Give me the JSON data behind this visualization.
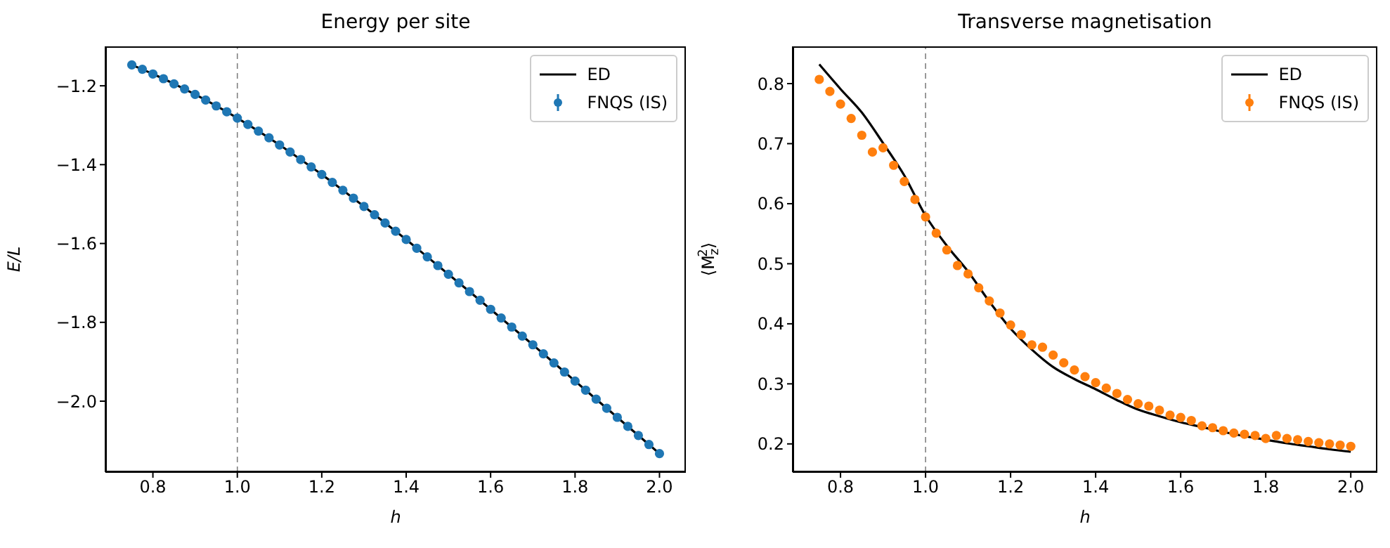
{
  "chart_data": [
    {
      "type": "line",
      "title": "Energy per site",
      "xlabel": "h",
      "ylabel": "E/L",
      "legend": "top right",
      "xlim": [
        0.6875,
        2.0625
      ],
      "xticks": [
        {
          "value": 0.8,
          "label": "0.8"
        },
        {
          "value": 1.0,
          "label": "1.0"
        },
        {
          "value": 1.2,
          "label": "1.2"
        },
        {
          "value": 1.4,
          "label": "1.4"
        },
        {
          "value": 1.6,
          "label": "1.6"
        },
        {
          "value": 1.8,
          "label": "1.8"
        },
        {
          "value": 2.0,
          "label": "2.0"
        }
      ],
      "ylim": [
        -2.18,
        -1.1
      ],
      "yticks": [
        {
          "value": -2.0,
          "label": "−2.0"
        },
        {
          "value": -1.8,
          "label": "−1.8"
        },
        {
          "value": -1.6,
          "label": "−1.6"
        },
        {
          "value": -1.4,
          "label": "−1.4"
        },
        {
          "value": -1.2,
          "label": "−1.2"
        }
      ],
      "ref_lines": [
        {
          "axis": "x",
          "value": 1.0,
          "color": "#808080",
          "line_style": "dashed"
        }
      ],
      "series": [
        {
          "name": "ED",
          "color": "#000000",
          "marker": "none",
          "line_style": "solid",
          "x": [
            0.75,
            0.8,
            0.85,
            0.9,
            0.95,
            1.0,
            1.05,
            1.1,
            1.15,
            1.2,
            1.25,
            1.3,
            1.35,
            1.4,
            1.45,
            1.5,
            1.55,
            1.6,
            1.65,
            1.7,
            1.75,
            1.8,
            1.85,
            1.9,
            1.95,
            2.0
          ],
          "values": [
            -1.147,
            -1.17,
            -1.195,
            -1.222,
            -1.251,
            -1.282,
            -1.315,
            -1.35,
            -1.387,
            -1.425,
            -1.465,
            -1.506,
            -1.548,
            -1.59,
            -1.634,
            -1.678,
            -1.722,
            -1.767,
            -1.812,
            -1.857,
            -1.903,
            -1.949,
            -1.995,
            -2.041,
            -2.087,
            -2.133
          ]
        },
        {
          "name": "FNQS (IS)",
          "type": "scatter",
          "color": "#1f77b4",
          "marker": "circle",
          "x": [
            0.75,
            0.775,
            0.8,
            0.825,
            0.85,
            0.875,
            0.9,
            0.925,
            0.95,
            0.975,
            1.0,
            1.025,
            1.05,
            1.075,
            1.1,
            1.125,
            1.15,
            1.175,
            1.2,
            1.225,
            1.25,
            1.275,
            1.3,
            1.325,
            1.35,
            1.375,
            1.4,
            1.425,
            1.45,
            1.475,
            1.5,
            1.525,
            1.55,
            1.575,
            1.6,
            1.625,
            1.65,
            1.675,
            1.7,
            1.725,
            1.75,
            1.775,
            1.8,
            1.825,
            1.85,
            1.875,
            1.9,
            1.925,
            1.95,
            1.975,
            2.0
          ],
          "values": [
            -1.147,
            -1.158,
            -1.17,
            -1.182,
            -1.195,
            -1.208,
            -1.222,
            -1.236,
            -1.251,
            -1.266,
            -1.282,
            -1.298,
            -1.315,
            -1.332,
            -1.35,
            -1.368,
            -1.387,
            -1.406,
            -1.425,
            -1.445,
            -1.465,
            -1.485,
            -1.506,
            -1.527,
            -1.548,
            -1.569,
            -1.59,
            -1.612,
            -1.634,
            -1.656,
            -1.678,
            -1.7,
            -1.722,
            -1.744,
            -1.767,
            -1.789,
            -1.812,
            -1.835,
            -1.857,
            -1.88,
            -1.903,
            -1.926,
            -1.949,
            -1.972,
            -1.995,
            -2.018,
            -2.041,
            -2.064,
            -2.087,
            -2.11,
            -2.133
          ]
        }
      ]
    },
    {
      "type": "line",
      "title": "Transverse magnetisation",
      "xlabel": "h",
      "ylabel": "⟨M$_{z}$$^{2}$⟩",
      "legend": "top right",
      "xlim": [
        0.6875,
        2.0625
      ],
      "xticks": [
        {
          "value": 0.8,
          "label": "0.8"
        },
        {
          "value": 1.0,
          "label": "1.0"
        },
        {
          "value": 1.2,
          "label": "1.2"
        },
        {
          "value": 1.4,
          "label": "1.4"
        },
        {
          "value": 1.6,
          "label": "1.6"
        },
        {
          "value": 1.8,
          "label": "1.8"
        },
        {
          "value": 2.0,
          "label": "2.0"
        }
      ],
      "ylim": [
        0.153,
        0.862
      ],
      "yticks": [
        0.2,
        0.3,
        0.4,
        0.5,
        0.6,
        0.7,
        0.8
      ],
      "ref_lines": [
        {
          "axis": "x",
          "value": 1.0,
          "color": "#808080",
          "line_style": "dashed"
        }
      ],
      "series": [
        {
          "name": "ED",
          "color": "#000000",
          "marker": "none",
          "line_style": "solid",
          "x": [
            0.75,
            0.8,
            0.85,
            0.9,
            0.95,
            1.0,
            1.05,
            1.1,
            1.15,
            1.2,
            1.25,
            1.3,
            1.35,
            1.4,
            1.45,
            1.5,
            1.55,
            1.6,
            1.65,
            1.7,
            1.75,
            1.8,
            1.85,
            1.9,
            1.95,
            2.0
          ],
          "values": [
            0.832,
            0.791,
            0.752,
            0.701,
            0.647,
            0.58,
            0.53,
            0.487,
            0.437,
            0.392,
            0.357,
            0.328,
            0.308,
            0.291,
            0.273,
            0.257,
            0.246,
            0.236,
            0.228,
            0.22,
            0.213,
            0.207,
            0.201,
            0.196,
            0.191,
            0.187
          ]
        },
        {
          "name": "FNQS (IS)",
          "type": "scatter",
          "color": "#ff7f0e",
          "marker": "circle",
          "x": [
            0.75,
            0.775,
            0.8,
            0.825,
            0.85,
            0.875,
            0.9,
            0.925,
            0.95,
            0.975,
            1.0,
            1.025,
            1.05,
            1.075,
            1.1,
            1.125,
            1.15,
            1.175,
            1.2,
            1.225,
            1.25,
            1.275,
            1.3,
            1.325,
            1.35,
            1.375,
            1.4,
            1.425,
            1.45,
            1.475,
            1.5,
            1.525,
            1.55,
            1.575,
            1.6,
            1.625,
            1.65,
            1.675,
            1.7,
            1.725,
            1.75,
            1.775,
            1.8,
            1.825,
            1.85,
            1.875,
            1.9,
            1.925,
            1.95,
            1.975,
            2.0
          ],
          "values": [
            0.807,
            0.787,
            0.766,
            0.742,
            0.714,
            0.686,
            0.693,
            0.664,
            0.637,
            0.607,
            0.578,
            0.551,
            0.523,
            0.497,
            0.483,
            0.46,
            0.438,
            0.418,
            0.398,
            0.382,
            0.365,
            0.361,
            0.348,
            0.335,
            0.323,
            0.312,
            0.302,
            0.293,
            0.284,
            0.274,
            0.267,
            0.263,
            0.256,
            0.248,
            0.244,
            0.239,
            0.23,
            0.227,
            0.222,
            0.218,
            0.216,
            0.214,
            0.209,
            0.214,
            0.209,
            0.207,
            0.204,
            0.202,
            0.2,
            0.198,
            0.196
          ]
        }
      ]
    }
  ]
}
